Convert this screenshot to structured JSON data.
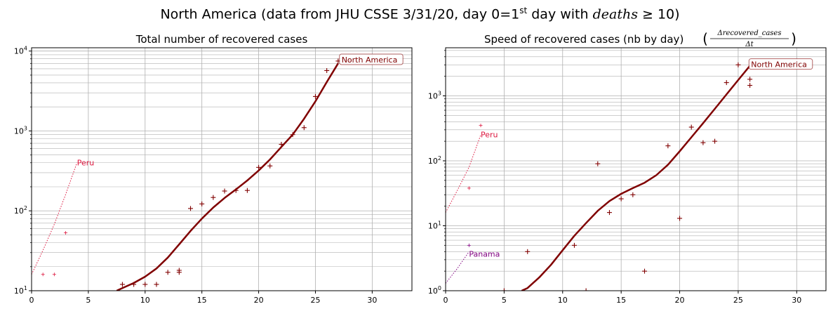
{
  "suptitle": {
    "main": "North America (data from JHU CSSE 3/31/20, day 0=1",
    "sup": "st",
    "mid": " day with ",
    "math": "deaths",
    "tail": " ≥ 10)"
  },
  "chart_data": [
    {
      "type": "line",
      "title": "Total number of recovered cases",
      "yscale": "log",
      "xlim": [
        0,
        33.5
      ],
      "ylim": [
        10,
        11000
      ],
      "grid": true,
      "x_ticks": [
        "0",
        "5",
        "10",
        "15",
        "20",
        "25",
        "30"
      ],
      "y_ticks": [
        {
          "value": 10,
          "base": "10",
          "exp": "1"
        },
        {
          "value": 100,
          "base": "10",
          "exp": "2"
        },
        {
          "value": 1000,
          "base": "10",
          "exp": "3"
        },
        {
          "value": 10000,
          "base": "10",
          "exp": "4"
        }
      ],
      "series": [
        {
          "name": "North America",
          "color": "#800000",
          "style": "solid",
          "width": 2.5,
          "x": [
            7.5,
            8,
            9,
            10,
            11,
            12,
            13,
            14,
            15,
            16,
            17,
            18,
            19,
            20,
            21,
            22,
            23,
            24,
            25,
            26,
            27
          ],
          "y": [
            10,
            10.8,
            12.5,
            15,
            19,
            26,
            38,
            56,
            80,
            110,
            145,
            185,
            240,
            320,
            440,
            630,
            900,
            1420,
            2350,
            4100,
            7000
          ]
        },
        {
          "name": "North America",
          "color": "#800000",
          "style": "markers",
          "x": [
            8,
            9,
            10,
            11,
            12,
            13,
            13,
            14,
            15,
            16,
            17,
            18,
            19,
            20,
            21,
            22,
            23,
            24,
            25,
            26,
            27,
            28
          ],
          "y": [
            12,
            12,
            12,
            12,
            17,
            17,
            18,
            107,
            122,
            147,
            177,
            180,
            180,
            350,
            365,
            680,
            900,
            1100,
            2700,
            5700,
            7500,
            7600
          ]
        },
        {
          "name": "Peru",
          "color": "#dc143c",
          "style": "dotted",
          "width": 1,
          "x": [
            0,
            1,
            2,
            3,
            4
          ],
          "y": [
            16,
            32,
            68,
            160,
            400
          ]
        },
        {
          "name": "Peru",
          "color": "#dc143c",
          "style": "markers_small",
          "x": [
            1,
            2,
            3
          ],
          "y": [
            16,
            16,
            53
          ]
        }
      ],
      "annotations": [
        {
          "text": "North America",
          "x": 27.3,
          "y": 7800,
          "color": "#800000",
          "boxed": true
        },
        {
          "text": "Peru",
          "x": 4.0,
          "y": 400,
          "color": "#dc143c",
          "boxed": false
        }
      ]
    },
    {
      "type": "line",
      "title": "Speed of recovered cases (nb by day)",
      "title_math": {
        "num": "Δrecovered_cases",
        "den": "Δt"
      },
      "yscale": "log",
      "xlim": [
        0,
        32.5
      ],
      "ylim": [
        1,
        5500
      ],
      "grid": true,
      "x_ticks": [
        "0",
        "5",
        "10",
        "15",
        "20",
        "25",
        "30"
      ],
      "y_ticks": [
        {
          "value": 1,
          "base": "10",
          "exp": "0"
        },
        {
          "value": 10,
          "base": "10",
          "exp": "1"
        },
        {
          "value": 100,
          "base": "10",
          "exp": "2"
        },
        {
          "value": 1000,
          "base": "10",
          "exp": "3"
        }
      ],
      "series": [
        {
          "name": "North America",
          "color": "#800000",
          "style": "solid",
          "width": 2.5,
          "x": [
            6.5,
            7,
            8,
            9,
            10,
            11,
            12,
            13,
            14,
            15,
            16,
            17,
            18,
            19,
            20,
            21,
            22,
            23,
            24,
            25,
            26
          ],
          "y": [
            1,
            1.1,
            1.6,
            2.5,
            4.2,
            7,
            11,
            17,
            24,
            31,
            38,
            46,
            60,
            87,
            140,
            230,
            380,
            630,
            1050,
            1750,
            2900
          ]
        },
        {
          "name": "North America",
          "color": "#800000",
          "style": "markers",
          "x": [
            5,
            7,
            11,
            12,
            13,
            14,
            15,
            16,
            17,
            19,
            20,
            21,
            22,
            23,
            24,
            25,
            26,
            26
          ],
          "y": [
            1,
            4,
            5,
            1,
            90,
            16,
            26,
            30,
            2,
            170,
            13,
            330,
            190,
            200,
            1600,
            3000,
            1800,
            1450
          ]
        },
        {
          "name": "Peru",
          "color": "#dc143c",
          "style": "dotted",
          "width": 1,
          "x": [
            0,
            1,
            2,
            3
          ],
          "y": [
            16,
            35,
            80,
            250
          ]
        },
        {
          "name": "Peru",
          "color": "#dc143c",
          "style": "markers_small",
          "x": [
            2,
            3
          ],
          "y": [
            38,
            350
          ]
        },
        {
          "name": "Panama",
          "color": "#800080",
          "style": "dotted",
          "width": 1,
          "x": [
            0,
            1,
            2
          ],
          "y": [
            1.3,
            2.2,
            4
          ]
        },
        {
          "name": "Panama",
          "color": "#800080",
          "style": "markers_small",
          "x": [
            2
          ],
          "y": [
            5
          ]
        }
      ],
      "annotations": [
        {
          "text": "North America",
          "x": 26.1,
          "y": 3050,
          "color": "#800000",
          "boxed": true
        },
        {
          "text": "Peru",
          "x": 3.0,
          "y": 255,
          "color": "#dc143c",
          "boxed": false
        },
        {
          "text": "Panama",
          "x": 2.0,
          "y": 3.7,
          "color": "#800080",
          "boxed": false
        }
      ]
    }
  ]
}
